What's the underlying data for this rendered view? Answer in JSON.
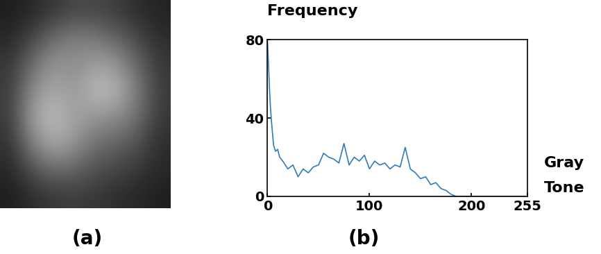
{
  "chart_data": [
    {
      "type": "image",
      "caption": "(a)",
      "tick_labels": false,
      "cell_range": [
        0,
        255
      ],
      "cells": [
        [
          30,
          40,
          55,
          70,
          70,
          60,
          45,
          35
        ],
        [
          40,
          70,
          110,
          130,
          120,
          100,
          70,
          45
        ],
        [
          55,
          110,
          150,
          140,
          160,
          150,
          100,
          55
        ],
        [
          60,
          140,
          170,
          150,
          190,
          180,
          120,
          60
        ],
        [
          60,
          160,
          190,
          160,
          150,
          140,
          110,
          55
        ],
        [
          50,
          130,
          170,
          150,
          110,
          100,
          80,
          45
        ],
        [
          40,
          80,
          110,
          100,
          80,
          70,
          55,
          40
        ],
        [
          30,
          45,
          55,
          60,
          55,
          45,
          40,
          30
        ]
      ]
    },
    {
      "type": "line",
      "caption": "(b)",
      "y_label": "Frequency",
      "x_label": "Gray\nTone",
      "color": "#2f7bbf",
      "x": [
        0,
        1,
        2,
        3,
        4,
        5,
        6,
        8,
        10,
        12,
        15,
        20,
        25,
        30,
        35,
        40,
        45,
        50,
        55,
        60,
        65,
        70,
        75,
        80,
        85,
        90,
        95,
        100,
        105,
        110,
        115,
        120,
        125,
        130,
        135,
        140,
        145,
        150,
        155,
        160,
        165,
        170,
        175,
        180,
        185,
        190,
        195,
        200,
        205,
        210,
        215,
        220,
        225,
        230,
        235,
        240,
        245,
        250,
        255
      ],
      "values": [
        80,
        68,
        55,
        45,
        38,
        32,
        26,
        23,
        24,
        20,
        18,
        14,
        16,
        10,
        14,
        12,
        15,
        16,
        22,
        20,
        19,
        17,
        27,
        16,
        20,
        18,
        21,
        14,
        18,
        16,
        17,
        14,
        16,
        15,
        25,
        14,
        12,
        9,
        10,
        6,
        7,
        4,
        3,
        1,
        0,
        0,
        0,
        0,
        0,
        0,
        0,
        0,
        0,
        0,
        0,
        0,
        0,
        0,
        0
      ],
      "xlim": [
        0,
        255
      ],
      "xticks": [
        0,
        100,
        200,
        255
      ],
      "ylim": [
        0,
        80
      ],
      "yticks": [
        0,
        40,
        80
      ]
    }
  ]
}
